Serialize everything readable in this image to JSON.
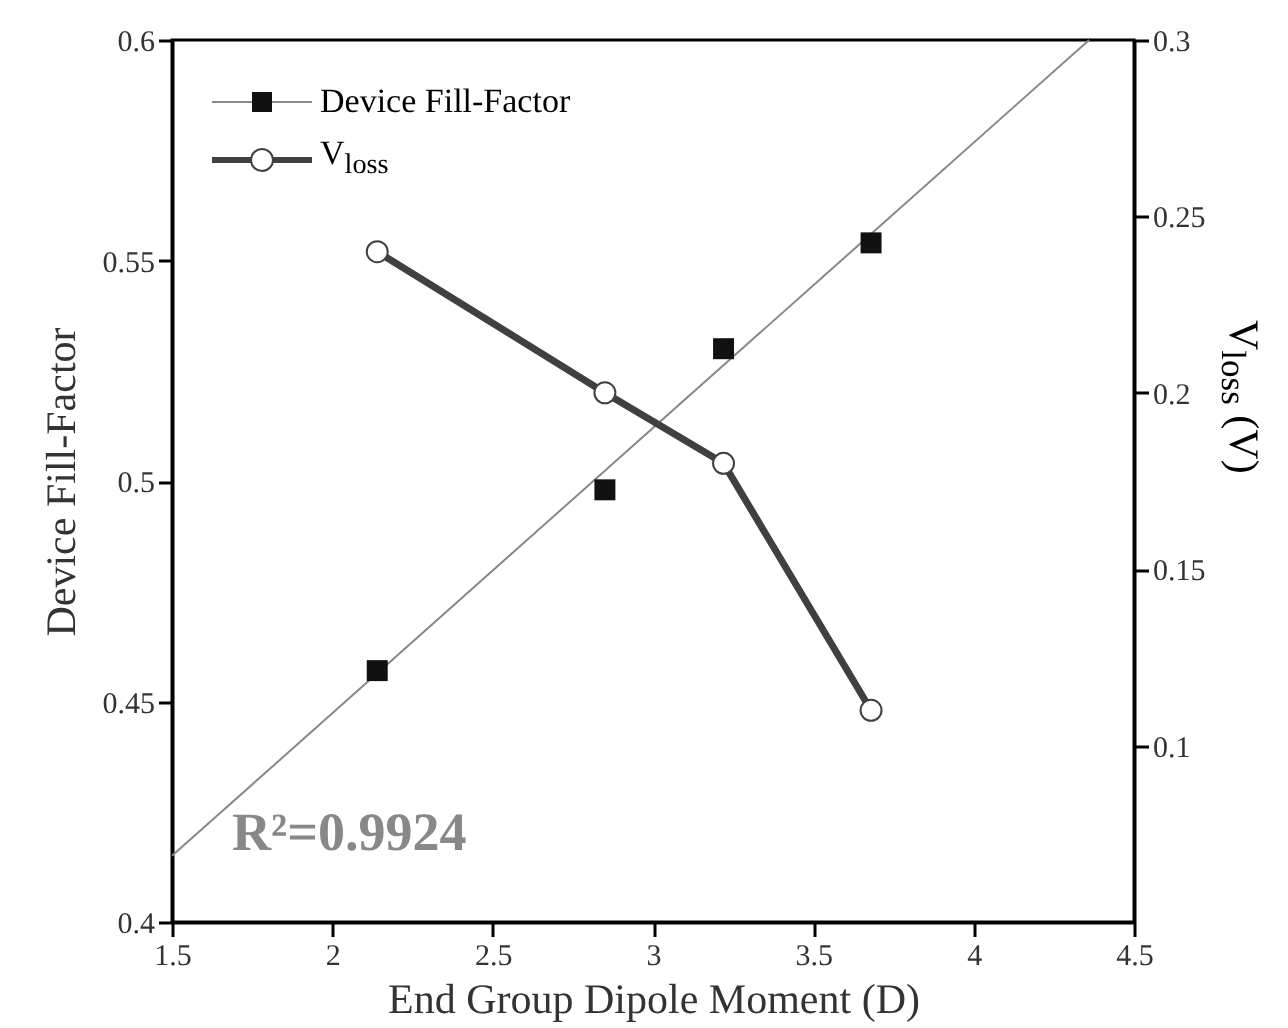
{
  "chart_data": {
    "type": "scatter",
    "xlabel": "End Group Dipole Moment (D)",
    "ylabel": "Device Fill-Factor",
    "y2label": "V$_{loss}$ (V)",
    "xlim": [
      1.5,
      4.5
    ],
    "xticks": [
      1.5,
      2,
      2.5,
      3,
      3.5,
      4,
      4.5
    ],
    "ylim": [
      0.4,
      0.6
    ],
    "yticks": [
      0.4,
      0.45,
      0.5,
      0.55,
      0.6
    ],
    "y2lim": [
      0.05,
      0.3
    ],
    "y2ticks": [
      0.1,
      0.15,
      0.2,
      0.25,
      0.3
    ],
    "grid": false,
    "legend": "top left",
    "annotations": [
      "R²=0.9924"
    ],
    "series": [
      {
        "name": "Device Fill-Factor",
        "type": "scatter",
        "marker": "square",
        "color": "#111111",
        "x": [
          2.14,
          2.85,
          3.22,
          3.68
        ],
        "values": [
          0.457,
          0.498,
          0.53,
          0.554
        ]
      },
      {
        "type": "line",
        "marker": "none",
        "color": "#888888",
        "x": [
          1.5,
          4.36
        ],
        "values": [
          0.415,
          0.6
        ]
      },
      {
        "name": "V$_{loss}$",
        "type": "line",
        "axis": "y2",
        "marker": "circle",
        "color": "#404040",
        "x": [
          2.14,
          2.85,
          3.22,
          3.68
        ],
        "values": [
          0.24,
          0.2,
          0.18,
          0.11
        ]
      }
    ]
  }
}
